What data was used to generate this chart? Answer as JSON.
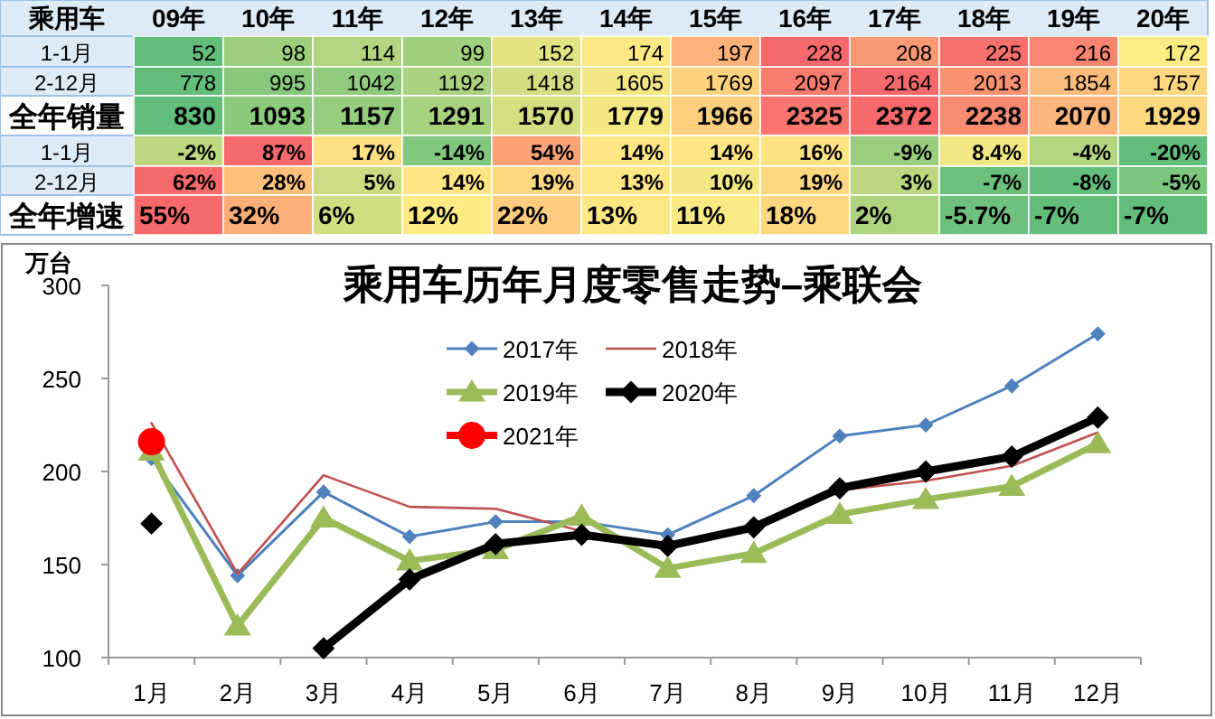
{
  "chart_data": [
    {
      "type": "heatmap",
      "ylabel": "乘用车",
      "categories": [
        "09年",
        "10年",
        "11年",
        "12年",
        "13年",
        "14年",
        "15年",
        "16年",
        "17年",
        "18年",
        "19年",
        "20年"
      ],
      "y_categories": [
        "1-1月",
        "2-12月",
        "全年销量",
        "1-1月",
        "2-12月",
        "全年增速"
      ],
      "cells": [
        [
          52,
          98,
          114,
          99,
          152,
          174,
          197,
          228,
          208,
          225,
          216,
          172
        ],
        [
          778,
          995,
          1042,
          1192,
          1418,
          1605,
          1769,
          2097,
          2164,
          2013,
          1854,
          1757
        ],
        [
          830,
          1093,
          1157,
          1291,
          1570,
          1779,
          1966,
          2325,
          2372,
          2238,
          2070,
          1929
        ],
        [
          -2,
          87,
          17,
          -14,
          54,
          14,
          14,
          16,
          -9,
          8.4,
          -4,
          -20
        ],
        [
          62,
          28,
          5,
          14,
          19,
          13,
          10,
          19,
          3,
          -7,
          -8,
          -5
        ],
        [
          55,
          32,
          6,
          12,
          22,
          13,
          11,
          18,
          2,
          -5.7,
          -7,
          -7
        ]
      ],
      "cell_labels": [
        [
          "52",
          "98",
          "114",
          "99",
          "152",
          "174",
          "197",
          "228",
          "208",
          "225",
          "216",
          "172"
        ],
        [
          "778",
          "995",
          "1042",
          "1192",
          "1418",
          "1605",
          "1769",
          "2097",
          "2164",
          "2013",
          "1854",
          "1757"
        ],
        [
          "830",
          "1093",
          "1157",
          "1291",
          "1570",
          "1779",
          "1966",
          "2325",
          "2372",
          "2238",
          "2070",
          "1929"
        ],
        [
          "-2%",
          "87%",
          "17%",
          "-14%",
          "54%",
          "14%",
          "14%",
          "16%",
          "-9%",
          "8.4%",
          "-4%",
          "-20%"
        ],
        [
          "62%",
          "28%",
          "5%",
          "14%",
          "19%",
          "13%",
          "10%",
          "19%",
          "3%",
          "-7%",
          "-8%",
          "-5%"
        ],
        [
          "55%",
          "32%",
          "6%",
          "12%",
          "22%",
          "13%",
          "11%",
          "18%",
          "2%",
          "-5.7%",
          "-7%",
          "-7%"
        ]
      ]
    },
    {
      "type": "line",
      "title": "乘用车历年月度零售走势–乘联会",
      "ylabel": "万台",
      "categories": [
        "1月",
        "2月",
        "3月",
        "4月",
        "5月",
        "6月",
        "7月",
        "8月",
        "9月",
        "10月",
        "11月",
        "12月"
      ],
      "ylim": [
        100,
        300
      ],
      "yticks": [
        100,
        150,
        200,
        250,
        300
      ],
      "grid": false,
      "legend": "top",
      "series": [
        {
          "name": "2017年",
          "color": "#4f81bd",
          "marker": "diamond",
          "values": [
            207,
            144,
            189,
            165,
            173,
            173,
            166,
            187,
            219,
            225,
            246,
            274
          ]
        },
        {
          "name": "2018年",
          "color": "#c0504d",
          "marker": "none",
          "values": [
            226,
            145,
            198,
            181,
            180,
            168,
            158,
            172,
            190,
            195,
            203,
            221
          ]
        },
        {
          "name": "2019年",
          "color": "#9bbb59",
          "marker": "triangle",
          "values": [
            211,
            117,
            175,
            152,
            158,
            176,
            148,
            156,
            177,
            185,
            192,
            215
          ]
        },
        {
          "name": "2020年",
          "color": "#000000",
          "marker": "diamond",
          "values": [
            172,
            null,
            105,
            142,
            161,
            166,
            160,
            170,
            191,
            200,
            208,
            229
          ]
        },
        {
          "name": "2021年",
          "color": "#ff0000",
          "marker": "circle",
          "values": [
            216,
            null,
            null,
            null,
            null,
            null,
            null,
            null,
            null,
            null,
            null,
            null
          ]
        }
      ]
    }
  ]
}
